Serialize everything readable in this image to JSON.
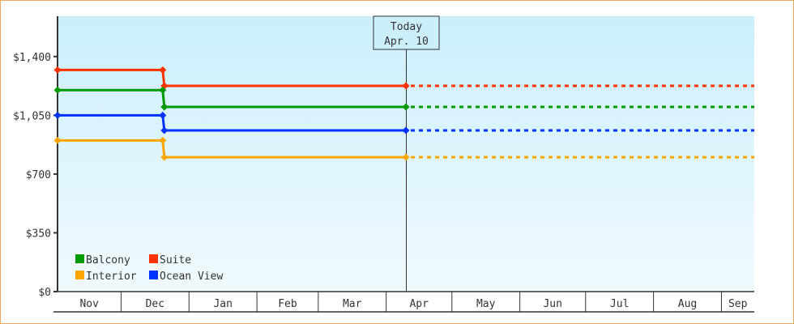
{
  "chart_data": {
    "type": "line",
    "step": true,
    "y_tick_labels": [
      "$0",
      "$350",
      "$700",
      "$1,050",
      "$1,400"
    ],
    "y_ticks": [
      0,
      350,
      700,
      1050,
      1400
    ],
    "ylim": [
      0,
      1640
    ],
    "x_range": [
      "Nov 2",
      "Sep 16"
    ],
    "x_tick_labels": [
      "Nov",
      "Dec",
      "Jan",
      "Feb",
      "Mar",
      "Apr",
      "May",
      "Jun",
      "Jul",
      "Aug",
      "Sep"
    ],
    "grid": false,
    "legend_position": "bottom-left",
    "today_marker": {
      "line1": "Today",
      "line2": "Apr. 10",
      "date": "Apr 10"
    },
    "projection": {
      "style": "dashed",
      "from": "Apr 10",
      "to": "Sep 16"
    },
    "series": [
      {
        "name": "Suite",
        "color": "#ff3300",
        "points": [
          {
            "x": "Nov 2",
            "y": 1320
          },
          {
            "x": "Dec 20",
            "y": 1320
          },
          {
            "x": "Dec 20",
            "y": 1225
          },
          {
            "x": "Apr 10",
            "y": 1225
          }
        ]
      },
      {
        "name": "Balcony",
        "color": "#009900",
        "points": [
          {
            "x": "Nov 2",
            "y": 1200
          },
          {
            "x": "Dec 20",
            "y": 1200
          },
          {
            "x": "Dec 20",
            "y": 1100
          },
          {
            "x": "Apr 10",
            "y": 1100
          }
        ]
      },
      {
        "name": "Ocean View",
        "color": "#0033ff",
        "points": [
          {
            "x": "Nov 2",
            "y": 1050
          },
          {
            "x": "Dec 20",
            "y": 1050
          },
          {
            "x": "Dec 20",
            "y": 960
          },
          {
            "x": "Apr 10",
            "y": 960
          }
        ]
      },
      {
        "name": "Interior",
        "color": "#ffa500",
        "points": [
          {
            "x": "Nov 2",
            "y": 900
          },
          {
            "x": "Dec 20",
            "y": 900
          },
          {
            "x": "Dec 20",
            "y": 800
          },
          {
            "x": "Apr 10",
            "y": 800
          }
        ]
      }
    ],
    "legend": [
      {
        "name": "Balcony",
        "color": "#009900"
      },
      {
        "name": "Suite",
        "color": "#ff3300"
      },
      {
        "name": "Interior",
        "color": "#ffa500"
      },
      {
        "name": "Ocean View",
        "color": "#0033ff"
      }
    ]
  }
}
